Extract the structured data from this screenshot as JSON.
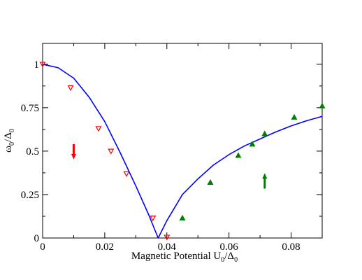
{
  "chart_data": {
    "type": "scatter",
    "title": "",
    "xlabel": "Magnetic Potential U",
    "xlabel_sub": "0",
    "xlabel_div": "/Δ",
    "xlabel_sub2": "0",
    "ylabel": "ω",
    "ylabel_sub": "0",
    "ylabel_div": "/Δ",
    "ylabel_sub2": "0",
    "xlim": [
      0,
      0.09
    ],
    "ylim": [
      0,
      1.12
    ],
    "xticks": [
      0,
      0.02,
      0.04,
      0.06,
      0.08
    ],
    "xtick_labels": [
      "0",
      "0.02",
      "0.04",
      "0.06",
      "0.08"
    ],
    "yticks": [
      0,
      0.25,
      0.5,
      0.75,
      1
    ],
    "ytick_labels": [
      "0",
      "0.25",
      "0.5",
      "0.75",
      "1"
    ],
    "grid": false,
    "series": [
      {
        "kind": "line",
        "color": "#0000ff",
        "x": [
          0,
          0.005,
          0.01,
          0.015,
          0.02,
          0.025,
          0.03,
          0.034,
          0.0372,
          0.04,
          0.045,
          0.05,
          0.055,
          0.06,
          0.065,
          0.07,
          0.075,
          0.08,
          0.085,
          0.09
        ],
        "y": [
          1.0,
          0.98,
          0.92,
          0.81,
          0.67,
          0.49,
          0.3,
          0.14,
          0.0,
          0.1,
          0.25,
          0.34,
          0.42,
          0.48,
          0.53,
          0.57,
          0.61,
          0.645,
          0.675,
          0.7
        ]
      },
      {
        "kind": "marker",
        "marker": "triangle-down-open",
        "color": "#ff0000",
        "x": [
          0.0,
          0.009,
          0.018,
          0.022,
          0.027,
          0.0355,
          0.04
        ],
        "y": [
          1.0,
          0.865,
          0.63,
          0.5,
          0.37,
          0.115,
          0.005
        ]
      },
      {
        "kind": "marker",
        "marker": "triangle-up-filled",
        "color": "#008000",
        "x": [
          0.045,
          0.054,
          0.063,
          0.0675,
          0.0715,
          0.081,
          0.09
        ],
        "y": [
          0.115,
          0.32,
          0.475,
          0.54,
          0.6,
          0.695,
          0.76
        ]
      }
    ],
    "annotations": [
      {
        "kind": "arrow",
        "direction": "down",
        "color": "#ff0000",
        "x": 0.01,
        "y": 0.5
      },
      {
        "kind": "arrow",
        "direction": "up",
        "color": "#008000",
        "x": 0.0715,
        "y": 0.325
      }
    ]
  }
}
